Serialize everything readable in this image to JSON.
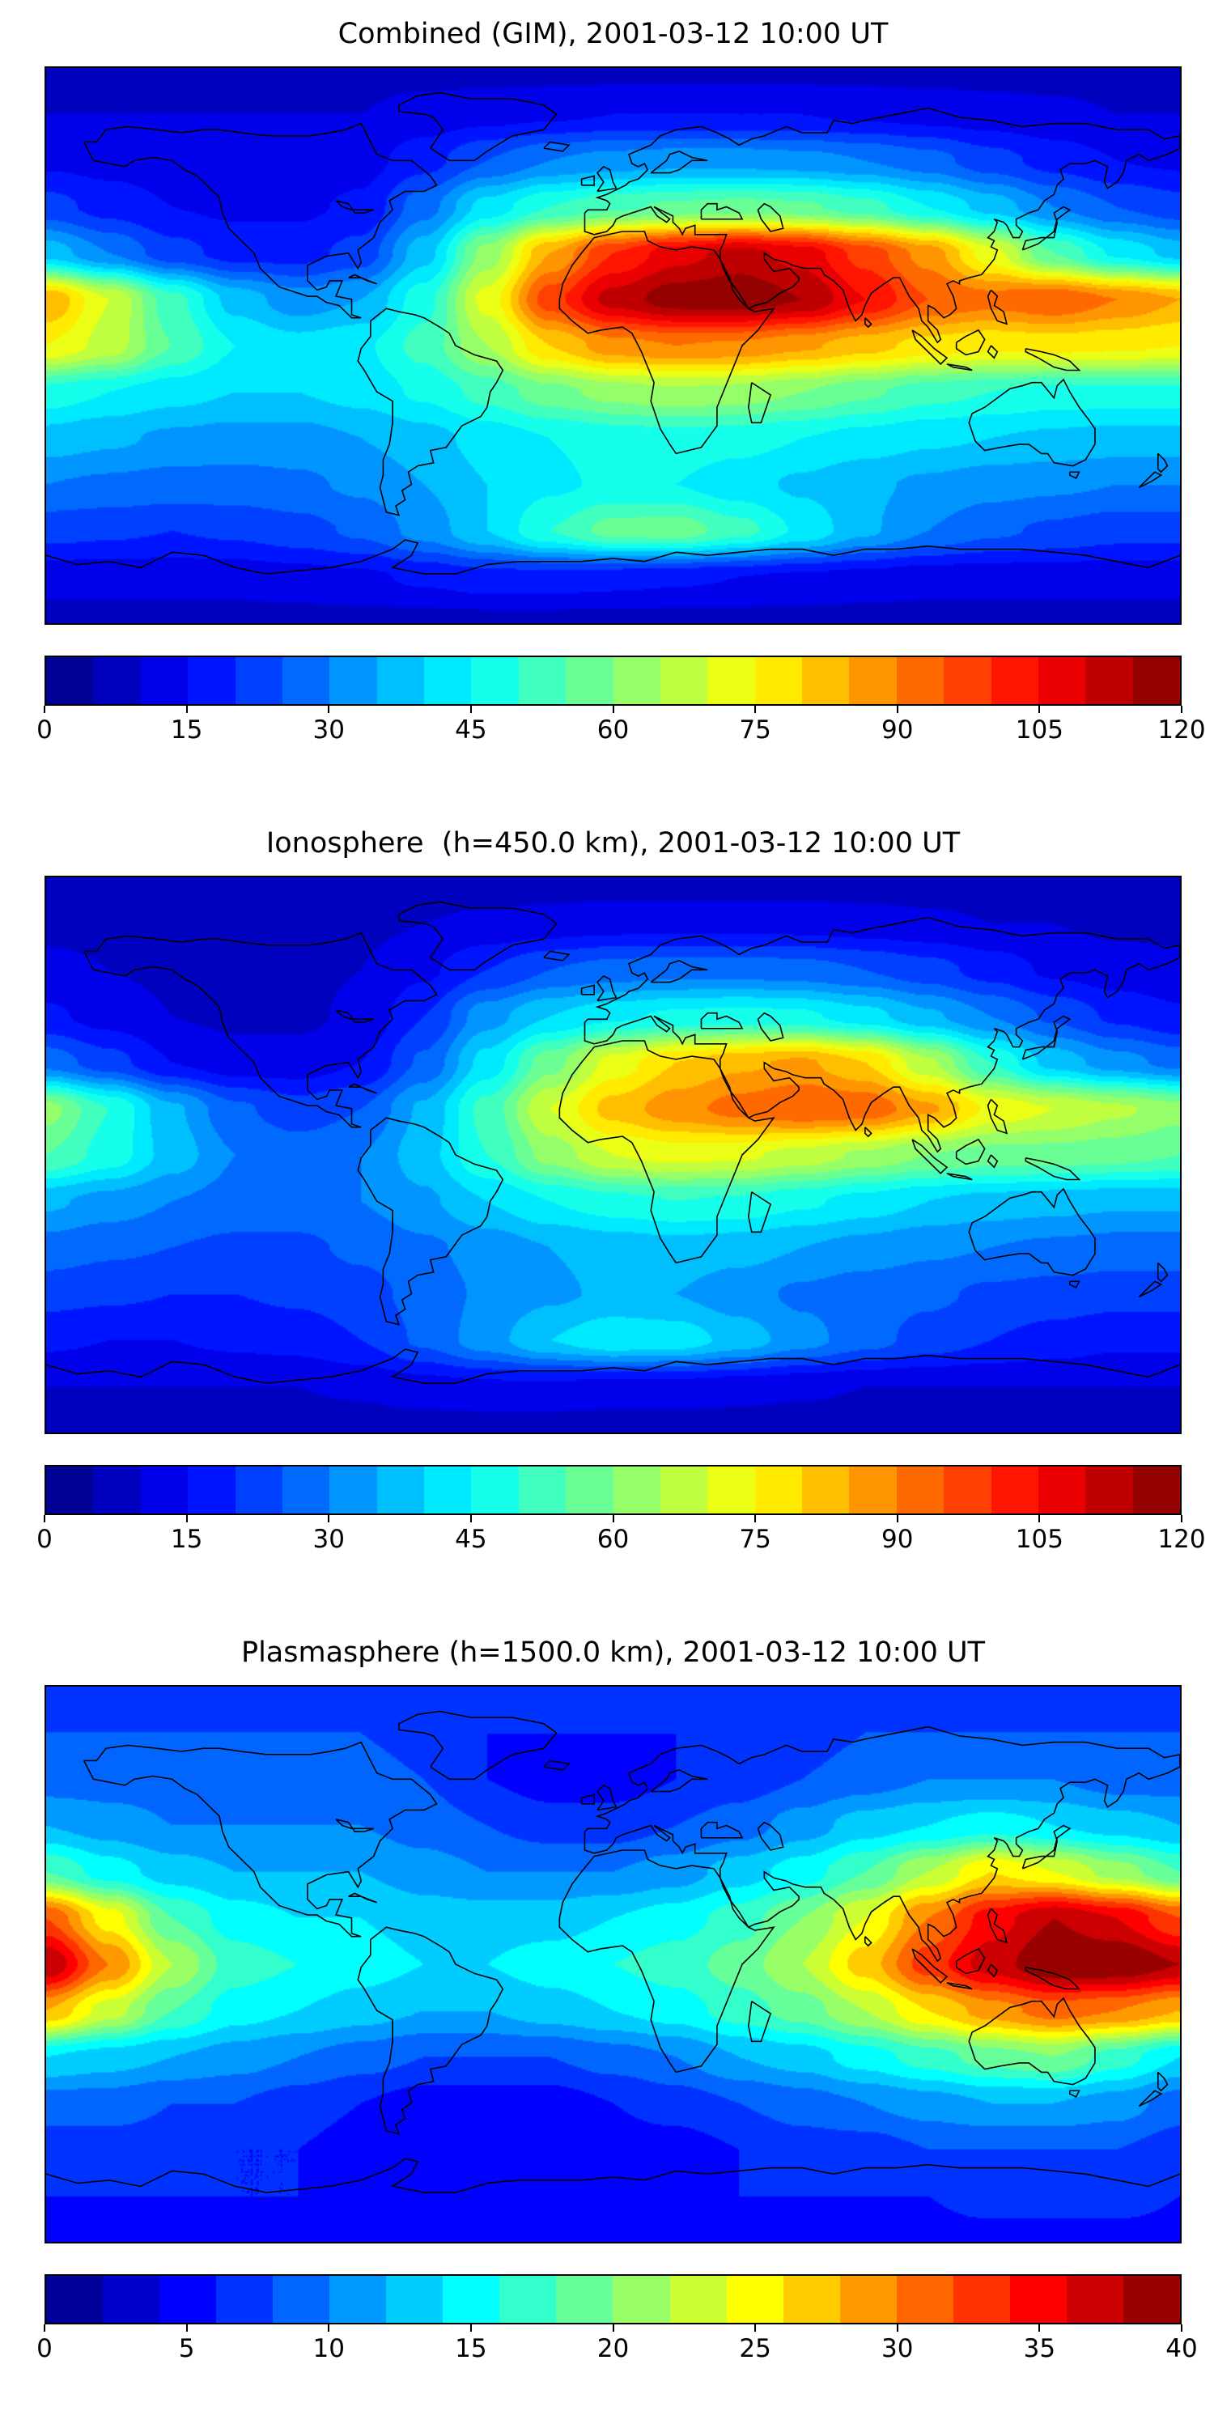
{
  "figure": {
    "panels": [
      {
        "title": "Combined (GIM), 2001-03-12 10:00 UT"
      },
      {
        "title": "Ionosphere  (h=450.0 km), 2001-03-12 10:00 UT"
      },
      {
        "title": "Plasmasphere (h=1500.0 km), 2001-03-12 10:00 UT"
      }
    ]
  },
  "chart_data": [
    {
      "type": "heatmap",
      "title": "Combined (GIM), 2001-03-12 10:00 UT",
      "projection": "equirectangular",
      "colormap": "jet",
      "levels": {
        "min": 0,
        "max": 120,
        "step": 5
      },
      "colorbar_ticks": [
        0,
        15,
        30,
        45,
        60,
        75,
        90,
        105,
        120
      ],
      "lon": [
        -180,
        -160,
        -140,
        -120,
        -100,
        -80,
        -60,
        -40,
        -20,
        0,
        20,
        40,
        60,
        80,
        100,
        120,
        140,
        160,
        180
      ],
      "lat": [
        90,
        75,
        60,
        45,
        30,
        15,
        0,
        -15,
        -30,
        -45,
        -60,
        -75,
        -90
      ],
      "values": [
        [
          8,
          8,
          8,
          8,
          8,
          8,
          8,
          8,
          8,
          8,
          8,
          8,
          8,
          8,
          8,
          8,
          8,
          8,
          8
        ],
        [
          10,
          10,
          10,
          10,
          10,
          10,
          12,
          13,
          14,
          15,
          15,
          15,
          15,
          14,
          13,
          12,
          11,
          10,
          10
        ],
        [
          14,
          13,
          12,
          12,
          12,
          13,
          18,
          25,
          30,
          32,
          33,
          33,
          32,
          30,
          27,
          22,
          18,
          15,
          14
        ],
        [
          22,
          18,
          15,
          14,
          14,
          16,
          28,
          42,
          50,
          54,
          56,
          57,
          56,
          52,
          45,
          38,
          30,
          25,
          22
        ],
        [
          38,
          30,
          22,
          18,
          18,
          22,
          38,
          62,
          85,
          100,
          108,
          112,
          108,
          98,
          88,
          72,
          55,
          44,
          38
        ],
        [
          85,
          70,
          52,
          38,
          32,
          35,
          48,
          72,
          98,
          112,
          118,
          119,
          115,
          105,
          95,
          92,
          95,
          90,
          85
        ],
        [
          75,
          68,
          55,
          45,
          42,
          44,
          52,
          65,
          80,
          88,
          90,
          89,
          86,
          82,
          78,
          76,
          77,
          76,
          75
        ],
        [
          48,
          45,
          42,
          40,
          40,
          42,
          46,
          52,
          58,
          62,
          64,
          63,
          60,
          56,
          52,
          50,
          48,
          48,
          48
        ],
        [
          38,
          36,
          34,
          33,
          33,
          35,
          38,
          42,
          45,
          47,
          48,
          47,
          45,
          43,
          41,
          40,
          39,
          38,
          38
        ],
        [
          30,
          29,
          28,
          28,
          29,
          31,
          35,
          40,
          44,
          46,
          45,
          42,
          39,
          36,
          34,
          32,
          31,
          30,
          30
        ],
        [
          22,
          21,
          20,
          21,
          23,
          26,
          32,
          40,
          50,
          57,
          58,
          52,
          44,
          36,
          30,
          26,
          24,
          22,
          22
        ],
        [
          12,
          12,
          12,
          12,
          13,
          14,
          16,
          18,
          18,
          17,
          16,
          15,
          14,
          13,
          12,
          12,
          12,
          12,
          12
        ],
        [
          8,
          8,
          8,
          8,
          8,
          8,
          8,
          8,
          8,
          8,
          8,
          8,
          8,
          8,
          8,
          8,
          8,
          8,
          8
        ]
      ]
    },
    {
      "type": "heatmap",
      "title": "Ionosphere  (h=450.0 km), 2001-03-12 10:00 UT",
      "projection": "equirectangular",
      "colormap": "jet",
      "levels": {
        "min": 0,
        "max": 120,
        "step": 5
      },
      "colorbar_ticks": [
        0,
        15,
        30,
        45,
        60,
        75,
        90,
        105,
        120
      ],
      "lon": [
        -180,
        -160,
        -140,
        -120,
        -100,
        -80,
        -60,
        -40,
        -20,
        0,
        20,
        40,
        60,
        80,
        100,
        120,
        140,
        160,
        180
      ],
      "lat": [
        90,
        75,
        60,
        45,
        30,
        15,
        0,
        -15,
        -30,
        -45,
        -60,
        -75,
        -90
      ],
      "values": [
        [
          7,
          7,
          7,
          7,
          7,
          7,
          7,
          7,
          7,
          7,
          7,
          7,
          7,
          7,
          7,
          7,
          7,
          7,
          7
        ],
        [
          9,
          9,
          9,
          9,
          9,
          9,
          10,
          11,
          12,
          13,
          13,
          13,
          13,
          12,
          11,
          10,
          10,
          9,
          9
        ],
        [
          11,
          10,
          9,
          9,
          9,
          10,
          14,
          20,
          25,
          27,
          28,
          28,
          27,
          25,
          22,
          18,
          14,
          12,
          11
        ],
        [
          16,
          13,
          10,
          9,
          9,
          11,
          20,
          33,
          40,
          44,
          46,
          47,
          46,
          42,
          36,
          30,
          24,
          19,
          16
        ],
        [
          28,
          22,
          15,
          12,
          12,
          15,
          26,
          42,
          58,
          72,
          80,
          84,
          86,
          80,
          66,
          50,
          38,
          32,
          28
        ],
        [
          62,
          50,
          36,
          26,
          22,
          25,
          36,
          52,
          70,
          82,
          88,
          92,
          95,
          94,
          86,
          74,
          70,
          66,
          62
        ],
        [
          55,
          48,
          38,
          30,
          28,
          30,
          38,
          50,
          62,
          70,
          72,
          71,
          68,
          64,
          60,
          58,
          58,
          57,
          55
        ],
        [
          36,
          33,
          30,
          28,
          28,
          30,
          34,
          40,
          45,
          48,
          50,
          49,
          46,
          43,
          40,
          38,
          37,
          36,
          36
        ],
        [
          28,
          26,
          25,
          24,
          24,
          26,
          29,
          32,
          35,
          37,
          38,
          37,
          35,
          33,
          31,
          30,
          29,
          28,
          28
        ],
        [
          22,
          21,
          20,
          20,
          21,
          23,
          27,
          31,
          34,
          36,
          35,
          32,
          29,
          27,
          26,
          24,
          23,
          22,
          22
        ],
        [
          16,
          15,
          15,
          16,
          17,
          20,
          26,
          33,
          40,
          44,
          43,
          38,
          32,
          27,
          23,
          20,
          18,
          16,
          16
        ],
        [
          10,
          10,
          10,
          10,
          10,
          11,
          13,
          14,
          14,
          13,
          13,
          12,
          11,
          10,
          10,
          10,
          10,
          10,
          10
        ],
        [
          7,
          7,
          7,
          7,
          7,
          7,
          7,
          7,
          7,
          7,
          7,
          7,
          7,
          7,
          7,
          7,
          7,
          7,
          7
        ]
      ]
    },
    {
      "type": "heatmap",
      "title": "Plasmasphere (h=1500.0 km), 2001-03-12 10:00 UT",
      "projection": "equirectangular",
      "colormap": "jet",
      "levels": {
        "min": 0,
        "max": 40,
        "step": 2
      },
      "colorbar_ticks": [
        0,
        5,
        10,
        15,
        20,
        25,
        30,
        35,
        40
      ],
      "lon": [
        -180,
        -160,
        -140,
        -120,
        -100,
        -80,
        -60,
        -40,
        -20,
        0,
        20,
        40,
        60,
        80,
        100,
        120,
        140,
        160,
        180
      ],
      "lat": [
        90,
        75,
        60,
        45,
        30,
        15,
        0,
        -15,
        -30,
        -45,
        -60,
        -75,
        -90
      ],
      "values": [
        [
          7,
          7,
          7,
          7,
          7,
          7,
          7,
          7,
          7,
          7,
          7,
          7,
          7,
          7,
          7,
          7,
          7,
          7,
          7
        ],
        [
          8,
          8,
          8,
          8,
          8,
          8,
          7,
          6,
          6,
          6,
          6,
          7,
          7,
          8,
          8,
          8,
          8,
          8,
          8
        ],
        [
          9,
          9,
          9,
          9,
          9,
          9,
          8,
          6,
          5,
          5,
          6,
          7,
          8,
          9,
          10,
          10,
          10,
          9,
          9
        ],
        [
          12,
          11,
          10,
          10,
          10,
          10,
          9,
          8,
          7,
          7,
          8,
          9,
          11,
          13,
          14,
          15,
          14,
          13,
          12
        ],
        [
          18,
          15,
          13,
          12,
          12,
          12,
          11,
          10,
          10,
          10,
          11,
          13,
          15,
          18,
          22,
          26,
          24,
          21,
          18
        ],
        [
          32,
          25,
          18,
          15,
          14,
          14,
          13,
          13,
          13,
          14,
          15,
          17,
          20,
          24,
          30,
          35,
          38,
          36,
          32
        ],
        [
          38,
          30,
          22,
          17,
          16,
          15,
          14,
          14,
          15,
          16,
          17,
          19,
          22,
          27,
          33,
          37,
          40,
          40,
          38
        ],
        [
          28,
          23,
          18,
          15,
          14,
          13,
          12,
          12,
          13,
          14,
          15,
          17,
          19,
          22,
          26,
          29,
          31,
          30,
          28
        ],
        [
          14,
          13,
          12,
          11,
          10,
          9,
          8,
          8,
          8,
          9,
          10,
          12,
          13,
          15,
          17,
          19,
          20,
          17,
          14
        ],
        [
          9,
          9,
          8,
          8,
          7,
          6,
          5,
          5,
          5,
          6,
          7,
          8,
          9,
          10,
          11,
          12,
          12,
          11,
          9
        ],
        [
          7,
          7,
          7,
          6,
          6,
          5,
          4,
          4,
          4,
          5,
          5,
          6,
          7,
          7,
          8,
          8,
          8,
          8,
          7
        ],
        [
          6,
          6,
          6,
          6,
          6,
          5,
          5,
          5,
          5,
          5,
          5,
          6,
          6,
          6,
          6,
          7,
          7,
          7,
          6
        ],
        [
          5,
          5,
          5,
          5,
          5,
          5,
          5,
          5,
          5,
          5,
          5,
          5,
          5,
          5,
          5,
          5,
          5,
          5,
          5
        ]
      ]
    }
  ]
}
